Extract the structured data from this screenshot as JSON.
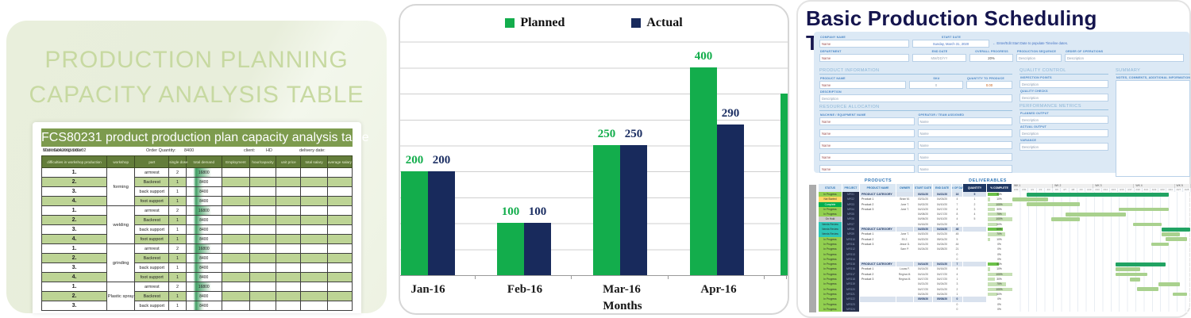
{
  "left_panel": {
    "title_line1": "PRODUCTION PLANNING",
    "title_line2": "CAPACITY ANALYSIS TABLE",
    "table_banner": "FCS80231 product production plan capacity analysis table",
    "info": {
      "manufacturing_order_label": "Manufacturing order:",
      "manufacturing_order": "S16YG042003/001/02",
      "order_quantity_label": "Order Quantity:",
      "order_quantity": "8400",
      "client_label": "client:",
      "client": "HD",
      "delivery_label": "delivery date:"
    },
    "columns": [
      "difficulties in workshop production",
      "workshop",
      "part",
      "single dose",
      "total demand",
      "Employment",
      "hour/capacity",
      "unit price",
      "total salary",
      "average salary"
    ],
    "workshops": [
      {
        "name": "forming",
        "rows": [
          {
            "no": "1.",
            "part": "armrest",
            "dose": "2",
            "demand": "16800"
          },
          {
            "no": "2.",
            "part": "Backrest",
            "dose": "1",
            "demand": "8400"
          },
          {
            "no": "3.",
            "part": "back support",
            "dose": "1",
            "demand": "8400"
          },
          {
            "no": "4.",
            "part": "foot support",
            "dose": "1",
            "demand": "8400"
          }
        ]
      },
      {
        "name": "welding",
        "rows": [
          {
            "no": "1.",
            "part": "armrest",
            "dose": "2",
            "demand": "16800"
          },
          {
            "no": "2.",
            "part": "Backrest",
            "dose": "1",
            "demand": "8400"
          },
          {
            "no": "3.",
            "part": "back support",
            "dose": "1",
            "demand": "8400"
          },
          {
            "no": "4.",
            "part": "foot support",
            "dose": "1",
            "demand": "8400"
          }
        ]
      },
      {
        "name": "grinding",
        "rows": [
          {
            "no": "1.",
            "part": "armrest",
            "dose": "2",
            "demand": "16800"
          },
          {
            "no": "2.",
            "part": "Backrest",
            "dose": "1",
            "demand": "8400"
          },
          {
            "no": "3.",
            "part": "back support",
            "dose": "1",
            "demand": "8400"
          },
          {
            "no": "4.",
            "part": "foot support",
            "dose": "1",
            "demand": "8400"
          }
        ]
      },
      {
        "name": "Plastic spray",
        "rows": [
          {
            "no": "1.",
            "part": "armrest",
            "dose": "2",
            "demand": "16800"
          },
          {
            "no": "2.",
            "part": "Backrest",
            "dose": "1",
            "demand": "8400"
          },
          {
            "no": "3.",
            "part": "back support",
            "dose": "1",
            "demand": "8400"
          }
        ]
      }
    ]
  },
  "chart_data": {
    "type": "bar",
    "title": "",
    "xlabel": "Months",
    "ylabel": "",
    "categories": [
      "Jan-16",
      "Feb-16",
      "Mar-16",
      "Apr-16"
    ],
    "series": [
      {
        "name": "Planned",
        "color": "#13ad4c",
        "values": [
          200,
          100,
          250,
          400
        ]
      },
      {
        "name": "Actual",
        "color": "#182a5c",
        "values": [
          200,
          100,
          250,
          290
        ]
      }
    ],
    "partial_next_bar": {
      "series": "Planned",
      "estimated_value": 350
    },
    "ylim": [
      0,
      450
    ],
    "grid_step": 50,
    "grid": true,
    "legend_position": "top",
    "data_labels": true
  },
  "right_panel": {
    "title": "Basic Production Scheduling Template",
    "form": {
      "company_name_label": "COMPANY NAME",
      "company_name": "Name",
      "start_date_label": "START DATE",
      "start_date": "Sunday, March 31, 2020",
      "note": "← Enter/Edit Start Date to populate Timeline dates.",
      "department_label": "DEPARTMENT",
      "department": "Name",
      "end_date_label": "END DATE",
      "end_date": "MM/DD/YY",
      "overall_progress_label": "OVERALL PROGRESS",
      "overall_progress": "20%",
      "production_sequence_label": "PRODUCTION SEQUENCE",
      "production_sequence": "Description",
      "order_of_operations_label": "ORDER OF OPERATIONS",
      "order_of_operations": "Description"
    },
    "product_information": {
      "title": "PRODUCT INFORMATION",
      "product_name_label": "PRODUCT NAME",
      "product_name": "Name",
      "sku_label": "SKU",
      "sku": "0",
      "quantity_label": "QUANTITY TO PRODUCE",
      "quantity": "0.00",
      "description_label": "DESCRIPTION",
      "description": "Description"
    },
    "resource_allocation": {
      "title": "RESOURCE ALLOCATION",
      "machine_label": "MACHINE / EQUIPMENT NAME",
      "operator_label": "OPERATOR / TEAM ASSIGNED",
      "machines": [
        "Name",
        "Name",
        "Name",
        "Name",
        "Name"
      ],
      "operators": [
        "Name",
        "Name",
        "Name",
        "Name",
        "Name"
      ]
    },
    "quality_control": {
      "title": "QUALITY CONTROL",
      "inspection_label": "INSPECTION POINTS",
      "inspection": "Description",
      "checks_label": "QUALITY CHECKS",
      "checks": "Description"
    },
    "performance_metrics": {
      "title": "PERFORMANCE METRICS",
      "planned_label": "PLANNED OUTPUT",
      "planned": "Description",
      "actual_label": "ACTUAL OUTPUT",
      "actual": "Description",
      "variance_label": "VARIANCE",
      "variance": "Description"
    },
    "summary": {
      "title": "SUMMARY",
      "notes_label": "NOTES, COMMENTS, ADDITIONAL INFORMATION"
    },
    "gantt": {
      "group_products": "PRODUCTS",
      "group_deliverables": "DELIVERABLES",
      "headers": [
        "STATUS",
        "PROJECT",
        "PRODUCT NAME",
        "OWNER",
        "START DATE",
        "END DATE",
        "# of Days",
        "QUANTITY",
        "% COMPLETE"
      ],
      "status_colors": {
        "In Progress": "#92d050",
        "Not Started": "#ffd966",
        "Complete": "#00b050",
        "On Hold": "#c9c9c9",
        "Needs Review": "#2ec6b8"
      },
      "bar_colors": {
        "category": "#21a363",
        "item": "#a9d18e"
      },
      "weeks": [
        {
          "label": "WK 1",
          "days": [
            "3/30",
            "3/31",
            "4/1",
            "4/2",
            "4/3"
          ]
        },
        {
          "label": "WK 2",
          "days": [
            "4/6",
            "4/7",
            "4/8",
            "4/9",
            "4/10"
          ]
        },
        {
          "label": "WK 3",
          "days": [
            "4/13",
            "4/14",
            "4/15",
            "4/16",
            "4/17"
          ]
        },
        {
          "label": "WK 4",
          "days": [
            "4/20",
            "4/21",
            "4/22",
            "4/23",
            "4/24"
          ]
        },
        {
          "label": "WK 5",
          "days": [
            "4/27",
            "4/28"
          ]
        }
      ],
      "rows": [
        {
          "status": "In Progress",
          "code": "MFG1",
          "name": "PRODUCT CATEGORY",
          "owner": "",
          "start": "03/31/20",
          "end": "04/21/20",
          "days": "16",
          "qty": "5",
          "pct": 44,
          "cat": true,
          "bar": [
            8,
            80
          ]
        },
        {
          "status": "Not Started",
          "code": "MFG2",
          "name": "Product 1",
          "owner": "Brian M.",
          "start": "03/31/20",
          "end": "04/03/20",
          "days": "4",
          "qty": "1",
          "pct": 10,
          "cat": false,
          "bar": [
            0,
            20
          ]
        },
        {
          "status": "Complete",
          "code": "MFG3",
          "name": "Product 2",
          "owner": "June T.",
          "start": "04/02/20",
          "end": "04/10/20",
          "days": "7",
          "qty": "2",
          "pct": 100,
          "cat": false,
          "bar": [
            8,
            30
          ]
        },
        {
          "status": "In Progress",
          "code": "MFG4",
          "name": "Product 3",
          "owner": "June T.",
          "start": "04/13/20",
          "end": "04/17/20",
          "days": "4",
          "qty": "3",
          "pct": 30,
          "cat": false,
          "bar": [
            60,
            28
          ]
        },
        {
          "status": "In Progress",
          "code": "MFG5",
          "name": "",
          "owner": "",
          "start": "04/08/20",
          "end": "04/17/20",
          "days": "8",
          "qty": "4",
          "pct": 75,
          "cat": false,
          "bar": [
            30,
            34
          ]
        },
        {
          "status": "On Hold",
          "code": "MFG6",
          "name": "",
          "owner": "",
          "start": "04/06/20",
          "end": "04/10/20",
          "days": "4",
          "qty": "5",
          "pct": 100,
          "cat": false,
          "bar": [
            22,
            16
          ]
        },
        {
          "status": "Needs Review",
          "code": "MFG7",
          "name": "",
          "owner": "",
          "start": "04/16/20",
          "end": "04/21/20",
          "days": "4",
          "qty": "",
          "pct": 40,
          "cat": false,
          "bar": [
            68,
            16
          ]
        },
        {
          "status": "Needs Review",
          "code": "MFG8",
          "name": "PRODUCT CATEGORY",
          "owner": "",
          "start": "04/20/20",
          "end": "04/24/20",
          "days": "46",
          "qty": "",
          "pct": 60,
          "cat": true,
          "bar": [
            84,
            16
          ]
        },
        {
          "status": "Needs Review",
          "code": "MFG9",
          "name": "Product 1",
          "owner": "June T.",
          "start": "04/20/20",
          "end": "04/21/20",
          "days": "45",
          "qty": "",
          "pct": 70,
          "cat": false,
          "bar": [
            84,
            10
          ]
        },
        {
          "status": "In Progress",
          "code": "MFG10",
          "name": "Product 2",
          "owner": "Eli Z.",
          "start": "04/20/20",
          "end": "05/01/20",
          "days": "5",
          "qty": "",
          "pct": 10,
          "cat": false,
          "bar": [
            86,
            12
          ]
        },
        {
          "status": "In Progress",
          "code": "MFG11",
          "name": "Product 3",
          "owner": "Jesse D.",
          "start": "04/21/20",
          "end": "04/24/20",
          "days": "44",
          "qty": "",
          "pct": 0,
          "cat": false,
          "bar": [
            78,
            10
          ]
        },
        {
          "status": "In Progress",
          "code": "MFG12",
          "name": "",
          "owner": "Sam P.",
          "start": "04/24/20",
          "end": "04/28/20",
          "days": "21",
          "qty": "",
          "pct": 0,
          "cat": false,
          "bar": null
        },
        {
          "status": "In Progress",
          "code": "MFG13",
          "name": "",
          "owner": "",
          "start": "",
          "end": "",
          "days": "0",
          "qty": "",
          "pct": 0,
          "cat": false,
          "bar": null
        },
        {
          "status": "In Progress",
          "code": "MFG14",
          "name": "",
          "owner": "",
          "start": "",
          "end": "",
          "days": "0",
          "qty": "",
          "pct": 0,
          "cat": false,
          "bar": null
        },
        {
          "status": "In Progress",
          "code": "MFG15",
          "name": "PRODUCT CATEGORY",
          "owner": "",
          "start": "04/14/20",
          "end": "04/21/20",
          "days": "7",
          "qty": "",
          "pct": 44,
          "cat": true,
          "bar": [
            58,
            28
          ]
        },
        {
          "status": "In Progress",
          "code": "MFG16",
          "name": "Product 1",
          "owner": "Lucas F.",
          "start": "04/14/20",
          "end": "04/16/20",
          "days": "4",
          "qty": "",
          "pct": 10,
          "cat": false,
          "bar": [
            58,
            14
          ]
        },
        {
          "status": "In Progress",
          "code": "MFG17",
          "name": "Product 2",
          "owner": "Regina M.",
          "start": "04/14/20",
          "end": "04/17/20",
          "days": "4",
          "qty": "",
          "pct": 100,
          "cat": false,
          "bar": [
            58,
            18
          ]
        },
        {
          "status": "In Progress",
          "code": "MFG18",
          "name": "Product 3",
          "owner": "Regina M.",
          "start": "04/17/20",
          "end": "04/17/20",
          "days": "1",
          "qty": "",
          "pct": 30,
          "cat": false,
          "bar": [
            66,
            6
          ]
        },
        {
          "status": "In Progress",
          "code": "MFG19",
          "name": "",
          "owner": "",
          "start": "04/21/20",
          "end": "04/24/20",
          "days": "3",
          "qty": "",
          "pct": 75,
          "cat": false,
          "bar": [
            82,
            12
          ]
        },
        {
          "status": "In Progress",
          "code": "MFG20",
          "name": "",
          "owner": "",
          "start": "04/17/20",
          "end": "04/21/20",
          "days": "2",
          "qty": "",
          "pct": 100,
          "cat": false,
          "bar": [
            70,
            12
          ]
        },
        {
          "status": "In Progress",
          "code": "MFG21",
          "name": "",
          "owner": "",
          "start": "04/24/20",
          "end": "04/24/20",
          "days": "1",
          "qty": "",
          "pct": 40,
          "cat": false,
          "bar": [
            90,
            8
          ]
        },
        {
          "status": "In Progress",
          "code": "MFG22",
          "name": "",
          "owner": "",
          "start": "05/05/20",
          "end": "05/08/20",
          "days": "0",
          "qty": "",
          "pct": 0,
          "cat": true,
          "bar": null
        },
        {
          "status": "In Progress",
          "code": "MFG23",
          "name": "",
          "owner": "",
          "start": "",
          "end": "",
          "days": "0",
          "qty": "",
          "pct": 0,
          "cat": false,
          "bar": null
        },
        {
          "status": "In Progress",
          "code": "MFG24",
          "name": "",
          "owner": "",
          "start": "",
          "end": "",
          "days": "0",
          "qty": "",
          "pct": 0,
          "cat": false,
          "bar": null
        }
      ]
    }
  }
}
